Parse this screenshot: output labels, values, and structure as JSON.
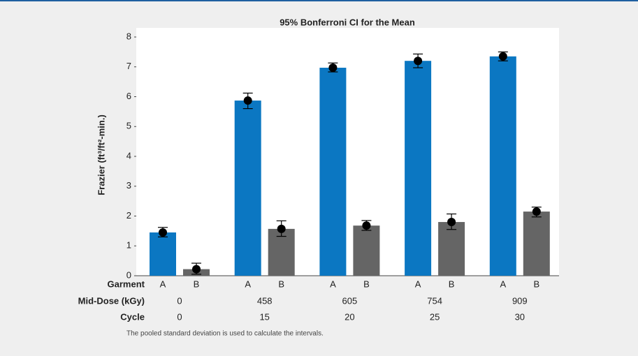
{
  "chart_data": {
    "type": "bar",
    "title": "95% Bonferroni CI for the Mean",
    "y_label": "Frazier (ft³/ft²-min.)",
    "row_labels": [
      "Garment",
      "Mid-Dose (kGy)",
      "Cycle"
    ],
    "mid_dose": [
      "0",
      "458",
      "605",
      "754",
      "909"
    ],
    "cycle": [
      "0",
      "15",
      "20",
      "25",
      "30"
    ],
    "series": [
      {
        "name": "A",
        "color": "#0b77c2",
        "values": [
          1.45,
          5.87,
          6.97,
          7.2,
          7.35
        ],
        "ci_lower": [
          1.3,
          5.6,
          6.83,
          6.97,
          7.2
        ],
        "ci_upper": [
          1.62,
          6.12,
          7.13,
          7.43,
          7.5
        ]
      },
      {
        "name": "B",
        "color": "#656565",
        "values": [
          0.22,
          1.57,
          1.68,
          1.8,
          2.15
        ],
        "ci_lower": [
          0.05,
          1.32,
          1.52,
          1.55,
          1.97
        ],
        "ci_upper": [
          0.42,
          1.84,
          1.85,
          2.07,
          2.3
        ]
      }
    ],
    "ylim": [
      0,
      8
    ],
    "yticks": [
      0,
      1,
      2,
      3,
      4,
      5,
      6,
      7,
      8
    ],
    "footnote": "The pooled standard deviation is used to calculate the intervals."
  }
}
